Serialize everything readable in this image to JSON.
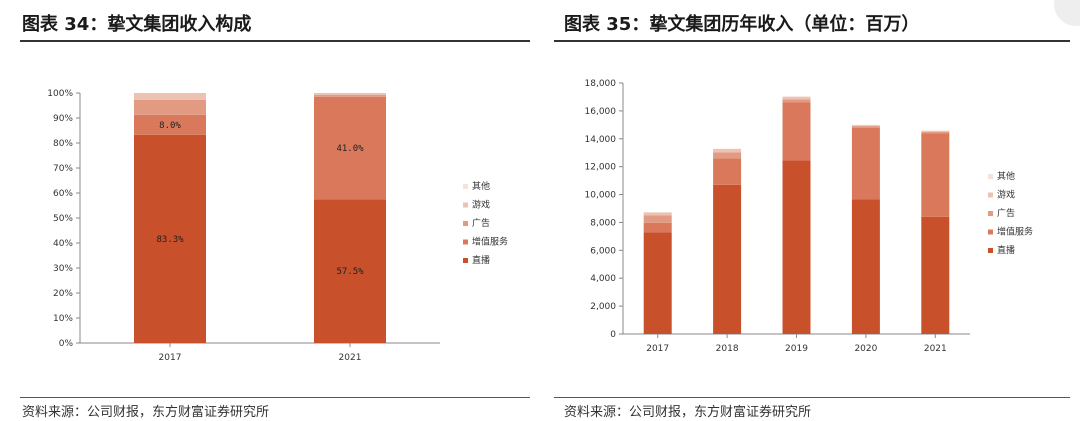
{
  "left_panel": {
    "title": "图表 34：挚文集团收入构成",
    "source": "资料来源：公司财报，东方财富证券研究所"
  },
  "right_panel": {
    "title": "图表 35：挚文集团历年收入（单位：百万）",
    "source": "资料来源：公司财报，东方财富证券研究所"
  },
  "colors": {
    "直播": "#C8502B",
    "增值服务": "#D9785A",
    "广告": "#E29A82",
    "游戏": "#EEC2B3",
    "其他": "#F6E2DA"
  },
  "chart_data": [
    {
      "type": "bar",
      "stacked": true,
      "percent": true,
      "categories": [
        "2017",
        "2021"
      ],
      "series": [
        {
          "name": "直播",
          "values": [
            83.3,
            57.5
          ]
        },
        {
          "name": "增值服务",
          "values": [
            8.0,
            41.0
          ]
        },
        {
          "name": "广告",
          "values": [
            6.0,
            0.8
          ]
        },
        {
          "name": "游戏",
          "values": [
            2.7,
            0.7
          ]
        },
        {
          "name": "其他",
          "values": [
            0,
            0
          ]
        }
      ],
      "data_labels": [
        {
          "category": "2017",
          "series": "直播",
          "text": "83.3%"
        },
        {
          "category": "2017",
          "series": "增值服务",
          "text": "8.0%"
        },
        {
          "category": "2021",
          "series": "直播",
          "text": "57.5%"
        },
        {
          "category": "2021",
          "series": "增值服务",
          "text": "41.0%"
        }
      ],
      "ylim": [
        0,
        100
      ],
      "yticks": [
        "0%",
        "10%",
        "20%",
        "30%",
        "40%",
        "50%",
        "60%",
        "70%",
        "80%",
        "90%",
        "100%"
      ],
      "legend_order": [
        "其他",
        "游戏",
        "广告",
        "增值服务",
        "直播"
      ],
      "legend_position": "right",
      "grid": false
    },
    {
      "type": "bar",
      "stacked": true,
      "categories": [
        "2017",
        "2018",
        "2019",
        "2020",
        "2021"
      ],
      "series": [
        {
          "name": "直播",
          "values": [
            7300,
            10700,
            12450,
            9650,
            8400
          ]
        },
        {
          "name": "增值服务",
          "values": [
            680,
            1900,
            4150,
            5150,
            6000
          ]
        },
        {
          "name": "广告",
          "values": [
            520,
            420,
            220,
            110,
            100
          ]
        },
        {
          "name": "游戏",
          "values": [
            220,
            250,
            200,
            70,
            80
          ]
        },
        {
          "name": "其他",
          "values": [
            0,
            20,
            0,
            20,
            0
          ]
        }
      ],
      "ylim": [
        0,
        18000
      ],
      "yticks": [
        "0",
        "2,000",
        "4,000",
        "6,000",
        "8,000",
        "10,000",
        "12,000",
        "14,000",
        "16,000",
        "18,000"
      ],
      "legend_order": [
        "其他",
        "游戏",
        "广告",
        "增值服务",
        "直播"
      ],
      "legend_position": "right",
      "grid": false
    }
  ]
}
